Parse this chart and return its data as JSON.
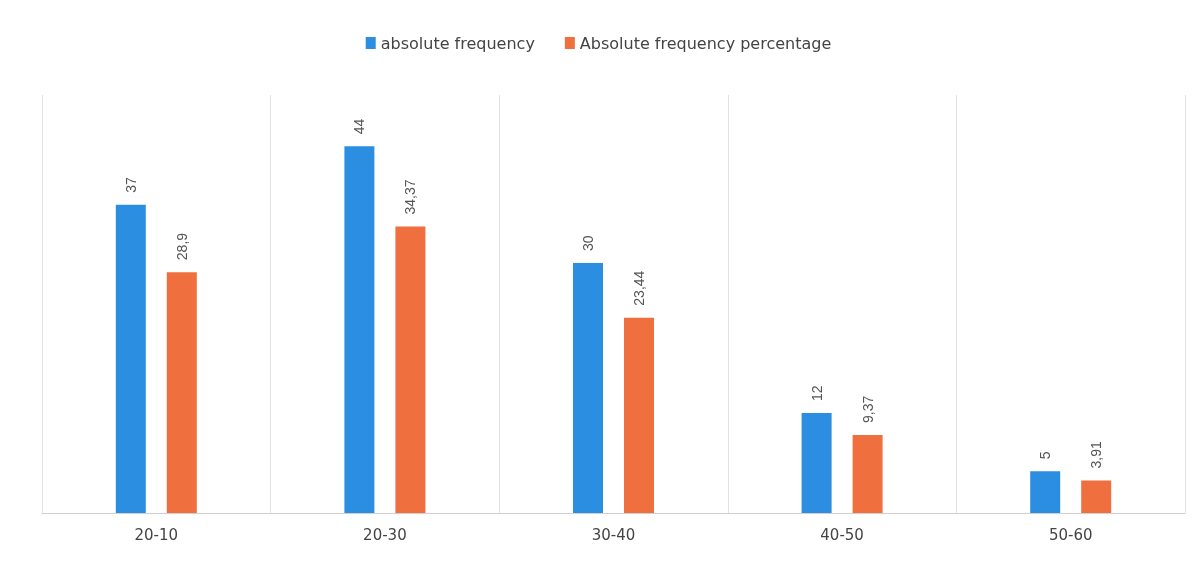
{
  "chart_data": {
    "type": "bar",
    "categories": [
      "20-10",
      "20-30",
      "30-40",
      "40-50",
      "50-60"
    ],
    "series": [
      {
        "name": "absolute frequency",
        "color": "#2b8ee0",
        "values": [
          37,
          44,
          30,
          12,
          5
        ],
        "value_labels": [
          "37",
          "44",
          "30",
          "12",
          "5"
        ]
      },
      {
        "name": "Absolute frequency percentage",
        "color": "#ef6f3f",
        "values": [
          28.9,
          34.37,
          23.44,
          9.37,
          3.91
        ],
        "value_labels": [
          "28,9",
          "34,37",
          "23,44",
          "9,37",
          "3,91"
        ]
      }
    ],
    "grid": "x",
    "legend": "top",
    "tick_labels": "x"
  }
}
